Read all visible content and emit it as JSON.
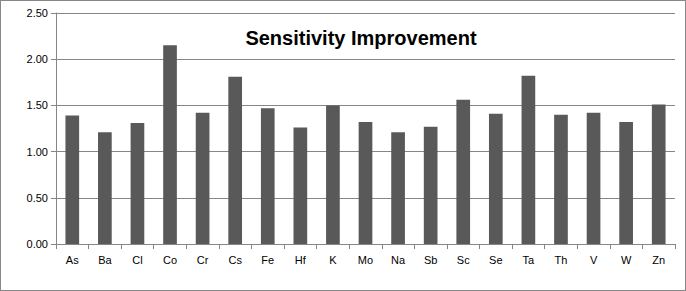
{
  "chart_data": {
    "type": "bar",
    "title": "Sensitivity Improvement",
    "categories": [
      "As",
      "Ba",
      "Cl",
      "Co",
      "Cr",
      "Cs",
      "Fe",
      "Hf",
      "K",
      "Mo",
      "Na",
      "Sb",
      "Sc",
      "Se",
      "Ta",
      "Th",
      "V",
      "W",
      "Zn"
    ],
    "values": [
      1.39,
      1.21,
      1.31,
      2.15,
      1.42,
      1.81,
      1.47,
      1.26,
      1.5,
      1.32,
      1.21,
      1.27,
      1.56,
      1.41,
      1.82,
      1.4,
      1.42,
      1.32,
      1.51
    ],
    "color": "#595959",
    "ylim": [
      0,
      2.5
    ],
    "yticks": [
      {
        "value": 0,
        "label": "0.00"
      },
      {
        "value": 0.5,
        "label": "0.50"
      },
      {
        "value": 1,
        "label": "1.00"
      },
      {
        "value": 1.5,
        "label": "1.50"
      },
      {
        "value": 2,
        "label": "2.00"
      },
      {
        "value": 2.5,
        "label": "2.50"
      }
    ],
    "grid": true
  }
}
